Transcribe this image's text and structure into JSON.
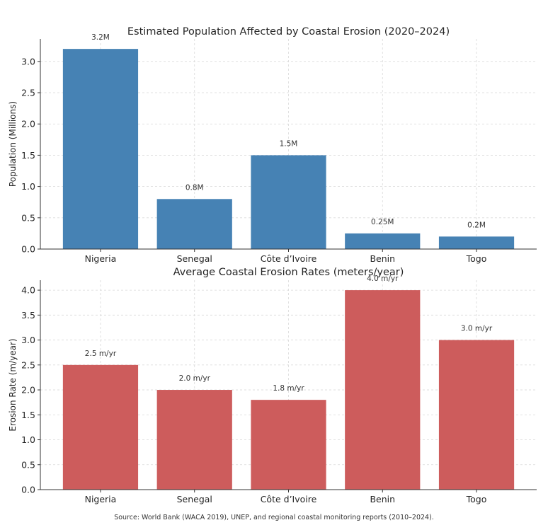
{
  "chart_data": [
    {
      "type": "bar",
      "title": "Estimated Population Affected by Coastal Erosion (2020–2024)",
      "xlabel": "",
      "ylabel": "Population (Millions)",
      "categories": [
        "Nigeria",
        "Senegal",
        "Côte d’Ivoire",
        "Benin",
        "Togo"
      ],
      "values": [
        3.2,
        0.8,
        1.5,
        0.25,
        0.2
      ],
      "data_labels": [
        "3.2M",
        "0.8M",
        "1.5M",
        "0.25M",
        "0.2M"
      ],
      "yticks": [
        "0.0",
        "0.5",
        "1.0",
        "1.5",
        "2.0",
        "2.5",
        "3.0"
      ],
      "ytick_values": [
        0,
        0.5,
        1.0,
        1.5,
        2.0,
        2.5,
        3.0
      ],
      "ylim": [
        0,
        3.36
      ],
      "grid": true,
      "color": "#4682b4"
    },
    {
      "type": "bar",
      "title": "Average Coastal Erosion Rates (meters/year)",
      "xlabel": "",
      "ylabel": "Erosion Rate (m/year)",
      "categories": [
        "Nigeria",
        "Senegal",
        "Côte d’Ivoire",
        "Benin",
        "Togo"
      ],
      "values": [
        2.5,
        2.0,
        1.8,
        4.0,
        3.0
      ],
      "data_labels": [
        "2.5 m/yr",
        "2.0 m/yr",
        "1.8 m/yr",
        "4.0 m/yr",
        "3.0 m/yr"
      ],
      "yticks": [
        "0.0",
        "0.5",
        "1.0",
        "1.5",
        "2.0",
        "2.5",
        "3.0",
        "3.5",
        "4.0"
      ],
      "ytick_values": [
        0,
        0.5,
        1.0,
        1.5,
        2.0,
        2.5,
        3.0,
        3.5,
        4.0
      ],
      "ylim": [
        0,
        4.2
      ],
      "grid": true,
      "color": "#cd5c5c"
    }
  ],
  "footer": {
    "source": "Source: World Bank (WACA 2019), UNEP, and regional coastal monitoring reports (2010–2024)."
  }
}
